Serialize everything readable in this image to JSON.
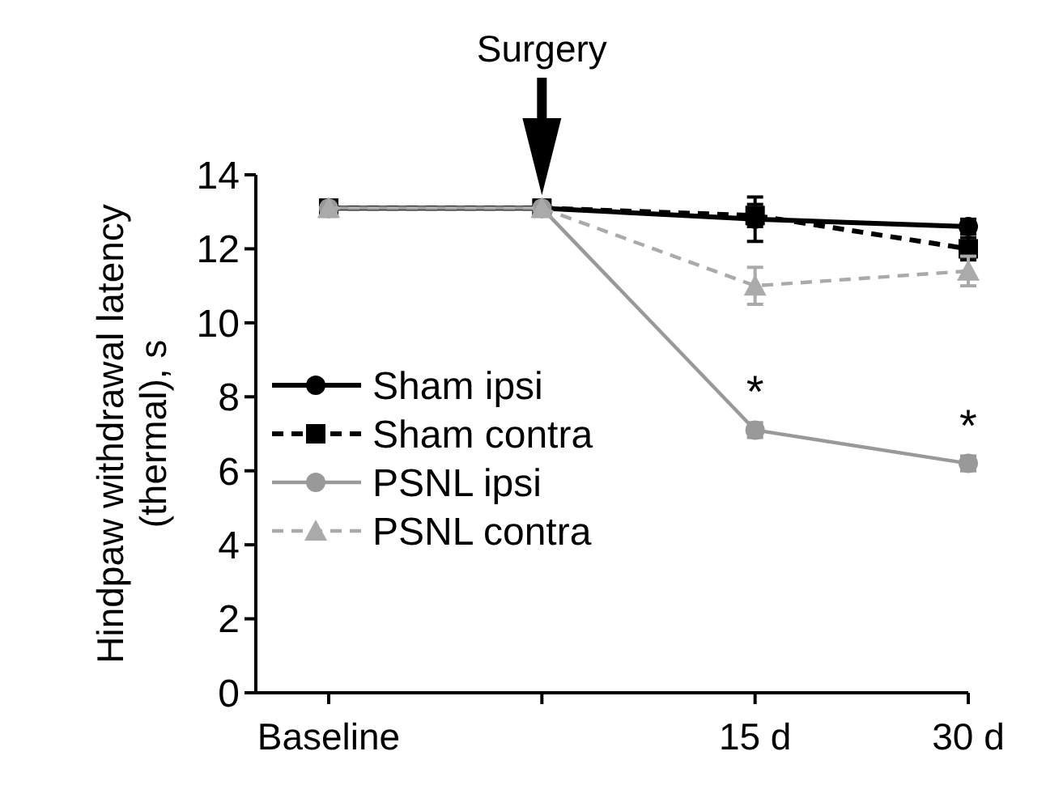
{
  "chart_data": {
    "type": "line",
    "ylabel": "Hindpaw withdrawal latency (thermal), s",
    "categories": [
      "Baseline",
      null,
      "15 d",
      "30 d"
    ],
    "ylim": [
      0,
      14
    ],
    "yticks": [
      0,
      2,
      4,
      6,
      8,
      10,
      12,
      14
    ],
    "legend": "bottom left",
    "grid": false,
    "series": [
      {
        "name": "Sham ipsi",
        "color": "#000000",
        "marker": "circle",
        "line_style": "solid",
        "values": [
          13.1,
          13.1,
          12.8,
          12.6
        ],
        "errors": [
          null,
          null,
          0.6,
          0.2
        ]
      },
      {
        "name": "Sham contra",
        "color": "#000000",
        "marker": "square",
        "line_style": "dashed",
        "values": [
          13.1,
          13.1,
          12.9,
          12.0
        ],
        "errors": [
          null,
          null,
          0.3,
          0.3
        ]
      },
      {
        "name": "PSNL ipsi",
        "color": "#999999",
        "marker": "circle",
        "line_style": "solid",
        "values": [
          13.1,
          13.1,
          7.1,
          6.2
        ],
        "errors": [
          null,
          null,
          0.2,
          0.2
        ]
      },
      {
        "name": "PSNL contra",
        "color": "#aaaaaa",
        "marker": "triangle",
        "line_style": "dashed",
        "values": [
          13.1,
          13.1,
          11.0,
          11.4
        ],
        "errors": [
          null,
          null,
          0.5,
          0.4
        ]
      }
    ],
    "annotations": [
      "Surgery",
      {
        "text": "*",
        "x": "15 d",
        "y": 7.1
      },
      {
        "text": "*",
        "x": "30 d",
        "y": 6.2
      }
    ]
  }
}
